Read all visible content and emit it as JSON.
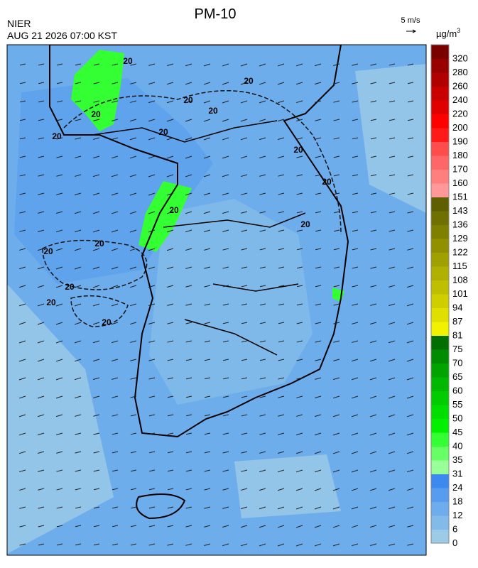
{
  "header": {
    "title": "PM-10",
    "agency": "NIER",
    "datetime": "AUG 21 2026 07:00 KST",
    "wind_scale": "5 m/s",
    "unit": "µg/m",
    "unit_sup": "3"
  },
  "colorbar": {
    "ticks": [
      0,
      6,
      12,
      18,
      24,
      31,
      35,
      40,
      45,
      50,
      55,
      60,
      65,
      70,
      75,
      81,
      87,
      94,
      101,
      108,
      115,
      122,
      129,
      136,
      143,
      151,
      160,
      170,
      180,
      190,
      200,
      220,
      240,
      260,
      280,
      320
    ],
    "colors": [
      "#9ccbe8",
      "#82bbe9",
      "#6eadec",
      "#579cee",
      "#3c8af0",
      "#99ff99",
      "#66ff66",
      "#33ff33",
      "#00f000",
      "#00de00",
      "#00cc00",
      "#00b800",
      "#00a300",
      "#008c00",
      "#006f00",
      "#f2f200",
      "#e0e000",
      "#cfcf00",
      "#bfbf00",
      "#b0b000",
      "#a0a000",
      "#909000",
      "#808000",
      "#707000",
      "#5f5f00",
      "#ff9999",
      "#ff7f7f",
      "#ff6666",
      "#ff4c4c",
      "#ff1a1a",
      "#ff0000",
      "#e00000",
      "#c80000",
      "#b00000",
      "#980000",
      "#7a0000"
    ]
  },
  "contour_labels": [
    "20",
    "20",
    "20",
    "20",
    "20",
    "20",
    "20",
    "20",
    "20",
    "20",
    "20",
    "20",
    "20",
    "20",
    "20",
    "20"
  ]
}
